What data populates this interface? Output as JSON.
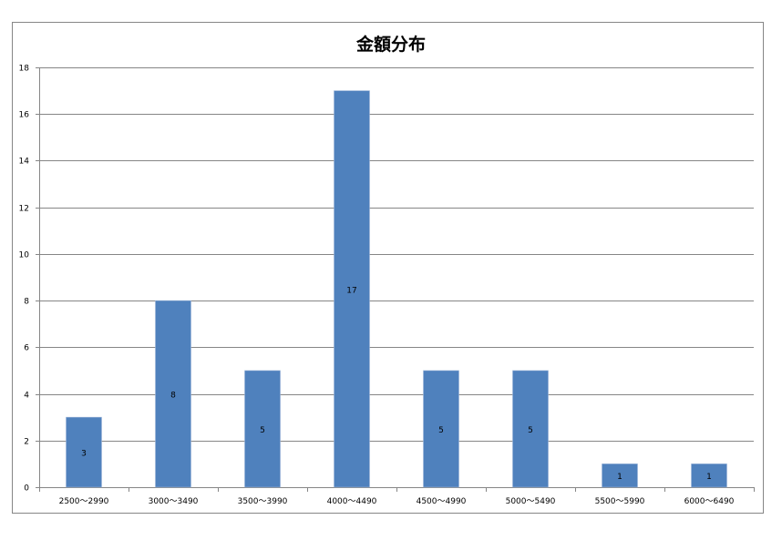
{
  "chart_data": {
    "type": "bar",
    "title": "金額分布",
    "categories": [
      "2500～2990",
      "3000～3490",
      "3500～3990",
      "4000～4490",
      "4500～4990",
      "5000～5490",
      "5500～5990",
      "6000～6490"
    ],
    "values": [
      3,
      8,
      5,
      17,
      5,
      5,
      1,
      1
    ],
    "data_labels": [
      "3",
      "8",
      "5",
      "17",
      "5",
      "5",
      "1",
      "1"
    ],
    "ylim": [
      0,
      18
    ],
    "yticks": [
      0,
      2,
      4,
      6,
      8,
      10,
      12,
      14,
      16,
      18
    ],
    "grid": true,
    "legend": "none",
    "bar_color": "#4F81BD",
    "xlabel": "",
    "ylabel": ""
  }
}
